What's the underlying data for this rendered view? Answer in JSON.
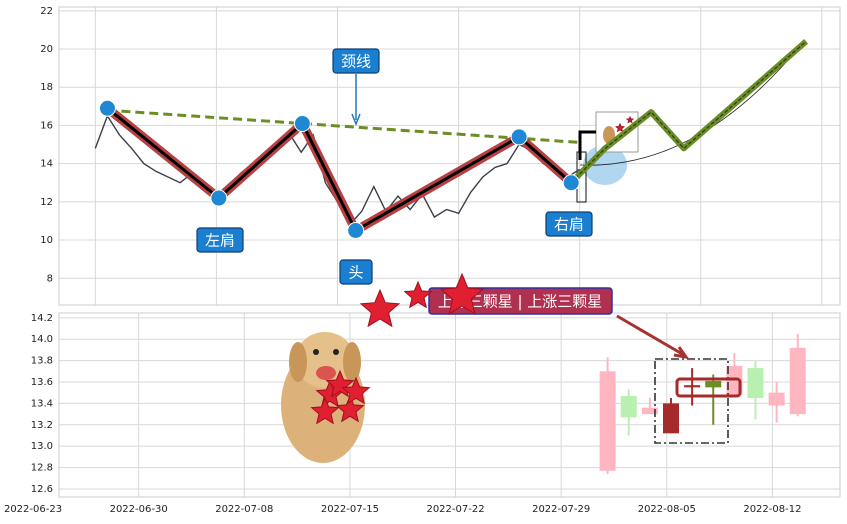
{
  "chart_data": [
    {
      "type": "line",
      "xlim": [
        -3,
        61.5
      ],
      "xticks": [
        0,
        10,
        20,
        30,
        40,
        50,
        60
      ],
      "ylim": [
        6.6,
        22.2
      ],
      "yticks": [
        8,
        10,
        12,
        14,
        16,
        18,
        20,
        22
      ],
      "grid": true,
      "series": [
        {
          "color": "#3a3f4a",
          "x": [
            0,
            1,
            2,
            3,
            4,
            5,
            6,
            7,
            8,
            9,
            10,
            11,
            12,
            13,
            14,
            15,
            16,
            17,
            18,
            19,
            20,
            21,
            22,
            23,
            24,
            25,
            26,
            27,
            28,
            29,
            30,
            31,
            32,
            33,
            34,
            35,
            36,
            37,
            38,
            39,
            40
          ],
          "values": [
            14.8,
            16.5,
            15.5,
            14.8,
            14.0,
            13.6,
            13.3,
            13.0,
            13.5,
            12.8,
            12.3,
            12.8,
            13.5,
            14.0,
            14.5,
            15.0,
            15.6,
            14.6,
            15.5,
            13.0,
            12.0,
            10.8,
            11.5,
            12.8,
            11.5,
            12.3,
            11.6,
            12.4,
            11.2,
            11.6,
            11.4,
            12.5,
            13.3,
            13.8,
            14.0,
            15.0,
            14.7,
            14.0,
            13.6,
            13.3,
            13.7
          ]
        },
        {
          "color": "#b84040",
          "marker_color": "#1f88d4",
          "x": [
            1,
            10.2,
            17.1,
            21.5,
            35,
            39.3
          ],
          "values": [
            16.9,
            12.2,
            16.1,
            10.5,
            15.4,
            13.0
          ]
        },
        {
          "color": "#6b8e23",
          "x": [
            1,
            40.2
          ],
          "values": [
            16.8,
            15.1
          ]
        },
        {
          "color": "#6b8e23",
          "x": [
            39.3,
            42.1,
            45.9,
            48.6,
            58.7
          ],
          "values": [
            13.0,
            14.8,
            16.7,
            14.8,
            20.4
          ]
        }
      ],
      "annotations": [
        "颈线",
        "左肩",
        "头",
        "右肩"
      ]
    },
    {
      "type": "candlestick",
      "xlim": [
        1.23,
        38.2
      ],
      "xticks": [
        {
          "value": 0,
          "label": "2022-06-23"
        },
        {
          "value": 5,
          "label": "2022-06-30"
        },
        {
          "value": 10,
          "label": "2022-07-08"
        },
        {
          "value": 15,
          "label": "2022-07-15"
        },
        {
          "value": 20,
          "label": "2022-07-22"
        },
        {
          "value": 25,
          "label": "2022-07-29"
        },
        {
          "value": 30,
          "label": "2022-08-05"
        },
        {
          "value": 35,
          "label": "2022-08-12"
        }
      ],
      "ylim": [
        12.525,
        14.245
      ],
      "yticks": [
        12.6,
        12.8,
        {
          "value": 13,
          "label": "13.0"
        },
        13.2,
        13.4,
        13.6,
        13.8,
        {
          "value": 14,
          "label": "14.0"
        },
        14.2
      ],
      "grid": true,
      "x": [
        27.2,
        28.2,
        29.2,
        30.2,
        31.2,
        32.2,
        33.2,
        34.2,
        35.2,
        36.2
      ],
      "open": [
        12.77,
        13.47,
        13.3,
        13.4,
        13.55,
        13.61,
        13.48,
        13.73,
        13.38,
        13.3
      ],
      "close": [
        13.7,
        13.27,
        13.36,
        13.12,
        13.57,
        13.55,
        13.75,
        13.45,
        13.5,
        13.92
      ],
      "high": [
        13.83,
        13.53,
        13.45,
        13.45,
        13.73,
        13.67,
        13.87,
        13.8,
        13.6,
        14.05
      ],
      "low": [
        12.74,
        13.1,
        13.3,
        13.12,
        13.38,
        13.2,
        13.47,
        13.25,
        13.22,
        13.28
      ],
      "colors": [
        "#ffb6c1",
        "#b8f0b0",
        "#ffb6c1",
        "#a52a2a",
        "#a52a2a",
        "#6b8e23",
        "#ffb6c1",
        "#b8f0b0",
        "#ffb6c1",
        "#ffb6c1"
      ],
      "annotation": "上涨三颗星 | 上涨三颗星"
    }
  ]
}
